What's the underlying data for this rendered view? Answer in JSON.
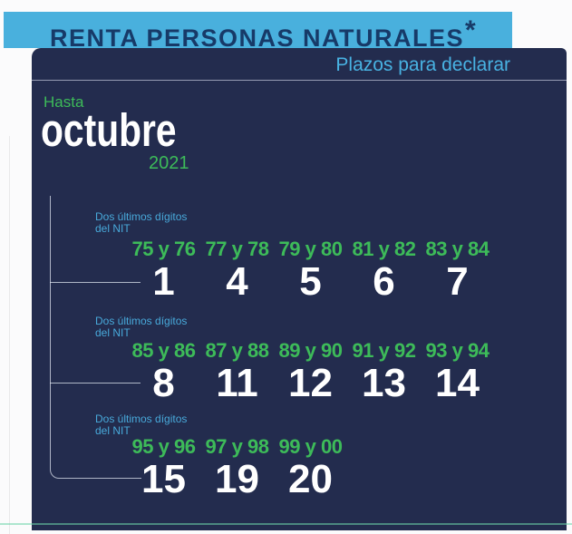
{
  "banner": {
    "title": "RENTA PERSONAS NATURALES",
    "asterisk": "*"
  },
  "panel_header": "Plazos para declarar",
  "period": {
    "prefix": "Hasta",
    "month": "octubre",
    "year": "2021"
  },
  "nit_label": {
    "line1": "Dos últimos dígitos",
    "line2": "del NIT"
  },
  "groups": [
    {
      "columns": [
        {
          "nit": "75 y 76",
          "day": "1"
        },
        {
          "nit": "77 y 78",
          "day": "4"
        },
        {
          "nit": "79 y 80",
          "day": "5"
        },
        {
          "nit": "81 y 82",
          "day": "6"
        },
        {
          "nit": "83 y 84",
          "day": "7"
        }
      ]
    },
    {
      "columns": [
        {
          "nit": "85 y 86",
          "day": "8"
        },
        {
          "nit": "87 y 88",
          "day": "11"
        },
        {
          "nit": "89 y 90",
          "day": "12"
        },
        {
          "nit": "91 y 92",
          "day": "13"
        },
        {
          "nit": "93 y 94",
          "day": "14"
        }
      ]
    },
    {
      "columns": [
        {
          "nit": "95 y 96",
          "day": "15"
        },
        {
          "nit": "97 y 98",
          "day": "19"
        },
        {
          "nit": "99 y 00",
          "day": "20"
        }
      ]
    }
  ],
  "colors": {
    "banner_bg": "#49b0dd",
    "panel_bg": "#232c4e",
    "accent_green": "#3dbb59",
    "accent_blue": "#48b2e2",
    "title_navy": "#173a68",
    "bottom_line_green": "#6ed6aa"
  }
}
